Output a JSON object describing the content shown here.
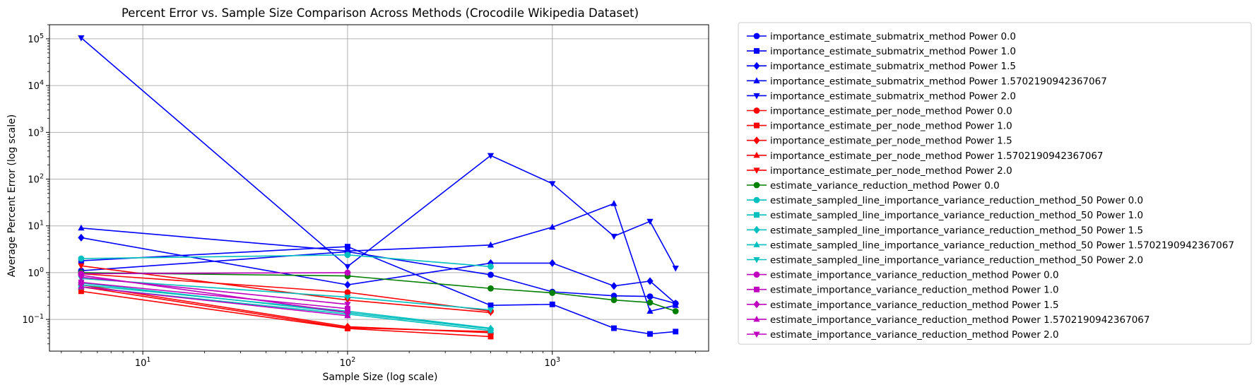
{
  "chart_data": {
    "type": "line",
    "title": "Percent Error vs. Sample Size Comparison Across Methods (Crocodile Wikipedia Dataset)",
    "xlabel": "Sample Size (log scale)",
    "ylabel": "Average Percent Error (log scale)",
    "xscale": "log",
    "yscale": "log",
    "xlim": [
      3.5,
      5800
    ],
    "ylim": [
      0.021,
      200000
    ],
    "grid": true,
    "legend_position": "outside-right",
    "x_ticks": [
      {
        "value": 10,
        "base": "10",
        "exp": "1"
      },
      {
        "value": 100,
        "base": "10",
        "exp": "2"
      },
      {
        "value": 1000,
        "base": "10",
        "exp": "3"
      }
    ],
    "y_ticks": [
      {
        "value": 0.1,
        "base": "10",
        "exp": "−1"
      },
      {
        "value": 1,
        "base": "10",
        "exp": "0"
      },
      {
        "value": 10,
        "base": "10",
        "exp": "1"
      },
      {
        "value": 100,
        "base": "10",
        "exp": "2"
      },
      {
        "value": 1000,
        "base": "10",
        "exp": "3"
      },
      {
        "value": 10000,
        "base": "10",
        "exp": "4"
      },
      {
        "value": 100000,
        "base": "10",
        "exp": "5"
      }
    ],
    "series": [
      {
        "name": "importance_estimate_submatrix_method Power 0.0",
        "color": "#0000ff",
        "marker": "circle",
        "points": [
          [
            5,
            1.1
          ],
          [
            100,
            2.8
          ],
          [
            500,
            0.9
          ],
          [
            1000,
            0.39
          ],
          [
            2000,
            0.32
          ],
          [
            3000,
            0.31
          ],
          [
            4000,
            0.22
          ]
        ]
      },
      {
        "name": "importance_estimate_submatrix_method Power 1.0",
        "color": "#0000ff",
        "marker": "square",
        "points": [
          [
            5,
            1.8
          ],
          [
            100,
            3.6
          ],
          [
            500,
            0.2
          ],
          [
            1000,
            0.21
          ],
          [
            2000,
            0.065
          ],
          [
            3000,
            0.049
          ],
          [
            4000,
            0.055
          ]
        ]
      },
      {
        "name": "importance_estimate_submatrix_method Power 1.5",
        "color": "#0000ff",
        "marker": "diamond",
        "points": [
          [
            5,
            5.6
          ],
          [
            100,
            0.55
          ],
          [
            500,
            1.6
          ],
          [
            1000,
            1.6
          ],
          [
            2000,
            0.52
          ],
          [
            3000,
            0.66
          ],
          [
            4000,
            0.22
          ]
        ]
      },
      {
        "name": "importance_estimate_submatrix_method Power 1.5702190942367067",
        "color": "#0000ff",
        "marker": "triangle-up",
        "points": [
          [
            5,
            9.0
          ],
          [
            100,
            2.9
          ],
          [
            500,
            3.9
          ],
          [
            1000,
            9.4
          ],
          [
            2000,
            30
          ],
          [
            3000,
            0.15
          ],
          [
            4000,
            0.2
          ]
        ]
      },
      {
        "name": "importance_estimate_submatrix_method Power 2.0",
        "color": "#0000ff",
        "marker": "triangle-down",
        "points": [
          [
            5,
            105000
          ],
          [
            100,
            1.35
          ],
          [
            500,
            320
          ],
          [
            1000,
            80
          ],
          [
            2000,
            6.0
          ],
          [
            3000,
            12.5
          ],
          [
            4000,
            1.25
          ]
        ]
      },
      {
        "name": "importance_estimate_per_node_method Power 0.0",
        "color": "#ff0000",
        "marker": "circle",
        "points": [
          [
            5,
            0.95
          ],
          [
            100,
            0.38
          ],
          [
            500,
            0.15
          ]
        ]
      },
      {
        "name": "importance_estimate_per_node_method Power 1.0",
        "color": "#ff0000",
        "marker": "square",
        "points": [
          [
            5,
            0.4
          ],
          [
            100,
            0.064
          ],
          [
            500,
            0.043
          ]
        ]
      },
      {
        "name": "importance_estimate_per_node_method Power 1.5",
        "color": "#ff0000",
        "marker": "diamond",
        "points": [
          [
            5,
            0.55
          ],
          [
            100,
            0.07
          ],
          [
            500,
            0.052
          ]
        ]
      },
      {
        "name": "importance_estimate_per_node_method Power 1.5702190942367067",
        "color": "#ff0000",
        "marker": "triangle-up",
        "points": [
          [
            5,
            0.5
          ],
          [
            100,
            0.066
          ],
          [
            500,
            0.055
          ]
        ]
      },
      {
        "name": "importance_estimate_per_node_method Power 2.0",
        "color": "#ff0000",
        "marker": "triangle-down",
        "points": [
          [
            5,
            1.4
          ],
          [
            100,
            0.26
          ],
          [
            500,
            0.14
          ]
        ]
      },
      {
        "name": "estimate_variance_reduction_method Power 0.0",
        "color": "#008000",
        "marker": "circle",
        "points": [
          [
            5,
            1.0
          ],
          [
            100,
            0.85
          ],
          [
            500,
            0.46
          ],
          [
            1000,
            0.37
          ],
          [
            2000,
            0.26
          ],
          [
            3000,
            0.23
          ],
          [
            4000,
            0.15
          ]
        ]
      },
      {
        "name": "estimate_sampled_line_importance_variance_reduction_method_50 Power 0.0",
        "color": "#00bfbf",
        "marker": "circle",
        "points": [
          [
            5,
            2.0
          ],
          [
            100,
            2.4
          ],
          [
            500,
            1.35
          ]
        ]
      },
      {
        "name": "estimate_sampled_line_importance_variance_reduction_method_50 Power 1.0",
        "color": "#00bfbf",
        "marker": "square",
        "points": [
          [
            5,
            0.5
          ],
          [
            100,
            0.13
          ],
          [
            500,
            0.058
          ]
        ]
      },
      {
        "name": "estimate_sampled_line_importance_variance_reduction_method_50 Power 1.5",
        "color": "#00bfbf",
        "marker": "diamond",
        "points": [
          [
            5,
            0.6
          ],
          [
            100,
            0.14
          ],
          [
            500,
            0.063
          ]
        ]
      },
      {
        "name": "estimate_sampled_line_importance_variance_reduction_method_50 Power 1.5702190942367067",
        "color": "#00bfbf",
        "marker": "triangle-up",
        "points": [
          [
            5,
            0.55
          ],
          [
            100,
            0.15
          ],
          [
            500,
            0.065
          ]
        ]
      },
      {
        "name": "estimate_sampled_line_importance_variance_reduction_method_50 Power 2.0",
        "color": "#00bfbf",
        "marker": "triangle-down",
        "points": [
          [
            5,
            0.75
          ],
          [
            100,
            0.3
          ],
          [
            500,
            0.16
          ]
        ]
      },
      {
        "name": "estimate_importance_variance_reduction_method Power 0.0",
        "color": "#bf00bf",
        "marker": "circle",
        "points": [
          [
            5,
            0.95
          ],
          [
            100,
            1.0
          ]
        ]
      },
      {
        "name": "estimate_importance_variance_reduction_method Power 1.0",
        "color": "#bf00bf",
        "marker": "square",
        "points": [
          [
            5,
            0.62
          ],
          [
            100,
            0.17
          ]
        ]
      },
      {
        "name": "estimate_importance_variance_reduction_method Power 1.5",
        "color": "#bf00bf",
        "marker": "diamond",
        "points": [
          [
            5,
            0.88
          ],
          [
            100,
            0.14
          ]
        ]
      },
      {
        "name": "estimate_importance_variance_reduction_method Power 1.5702190942367067",
        "color": "#bf00bf",
        "marker": "triangle-up",
        "points": [
          [
            5,
            0.5
          ],
          [
            100,
            0.12
          ]
        ]
      },
      {
        "name": "estimate_importance_variance_reduction_method Power 2.0",
        "color": "#bf00bf",
        "marker": "triangle-down",
        "points": [
          [
            5,
            0.8
          ],
          [
            100,
            0.21
          ]
        ]
      }
    ]
  }
}
